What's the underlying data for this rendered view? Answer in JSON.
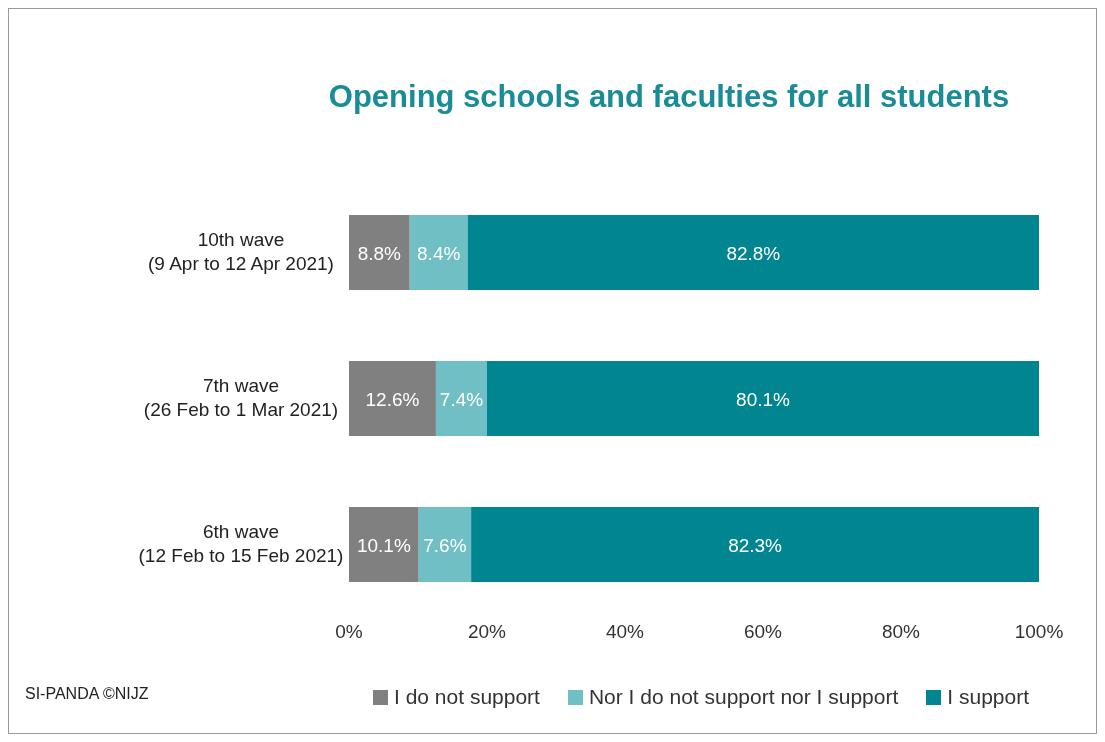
{
  "chart_data": {
    "type": "bar",
    "orientation": "horizontal",
    "stacked": true,
    "title": "Opening schools and faculties for all students",
    "categories": [
      "10th wave\n(9 Apr to 12 Apr 2021)",
      "7th wave\n(26 Feb to 1 Mar 2021)",
      "6th wave\n(12 Feb to 15 Feb 2021)"
    ],
    "series": [
      {
        "name": "I do not support",
        "color": "#808080",
        "values": [
          8.8,
          12.6,
          10.1
        ],
        "value_labels": [
          "8.8%",
          "12.6%",
          "10.1%"
        ]
      },
      {
        "name": "Nor I do not support nor I support",
        "color": "#70bfc4",
        "values": [
          8.4,
          7.4,
          7.6
        ],
        "value_labels": [
          "8.4%",
          "7.4%",
          "7.6%"
        ]
      },
      {
        "name": "I support",
        "color": "#008591",
        "values": [
          82.8,
          80.1,
          82.3
        ],
        "value_labels": [
          "82.8%",
          "80.1%",
          "82.3%"
        ]
      }
    ],
    "xlim": [
      0,
      100
    ],
    "xticks": [
      {
        "value": 0,
        "label": "0%"
      },
      {
        "value": 20,
        "label": "20%"
      },
      {
        "value": 40,
        "label": "40%"
      },
      {
        "value": 60,
        "label": "60%"
      },
      {
        "value": 80,
        "label": "80%"
      },
      {
        "value": 100,
        "label": "100%"
      }
    ],
    "grid": false,
    "legend": "bottom",
    "annotations": [
      "SI-PANDA ©NIJZ"
    ]
  }
}
